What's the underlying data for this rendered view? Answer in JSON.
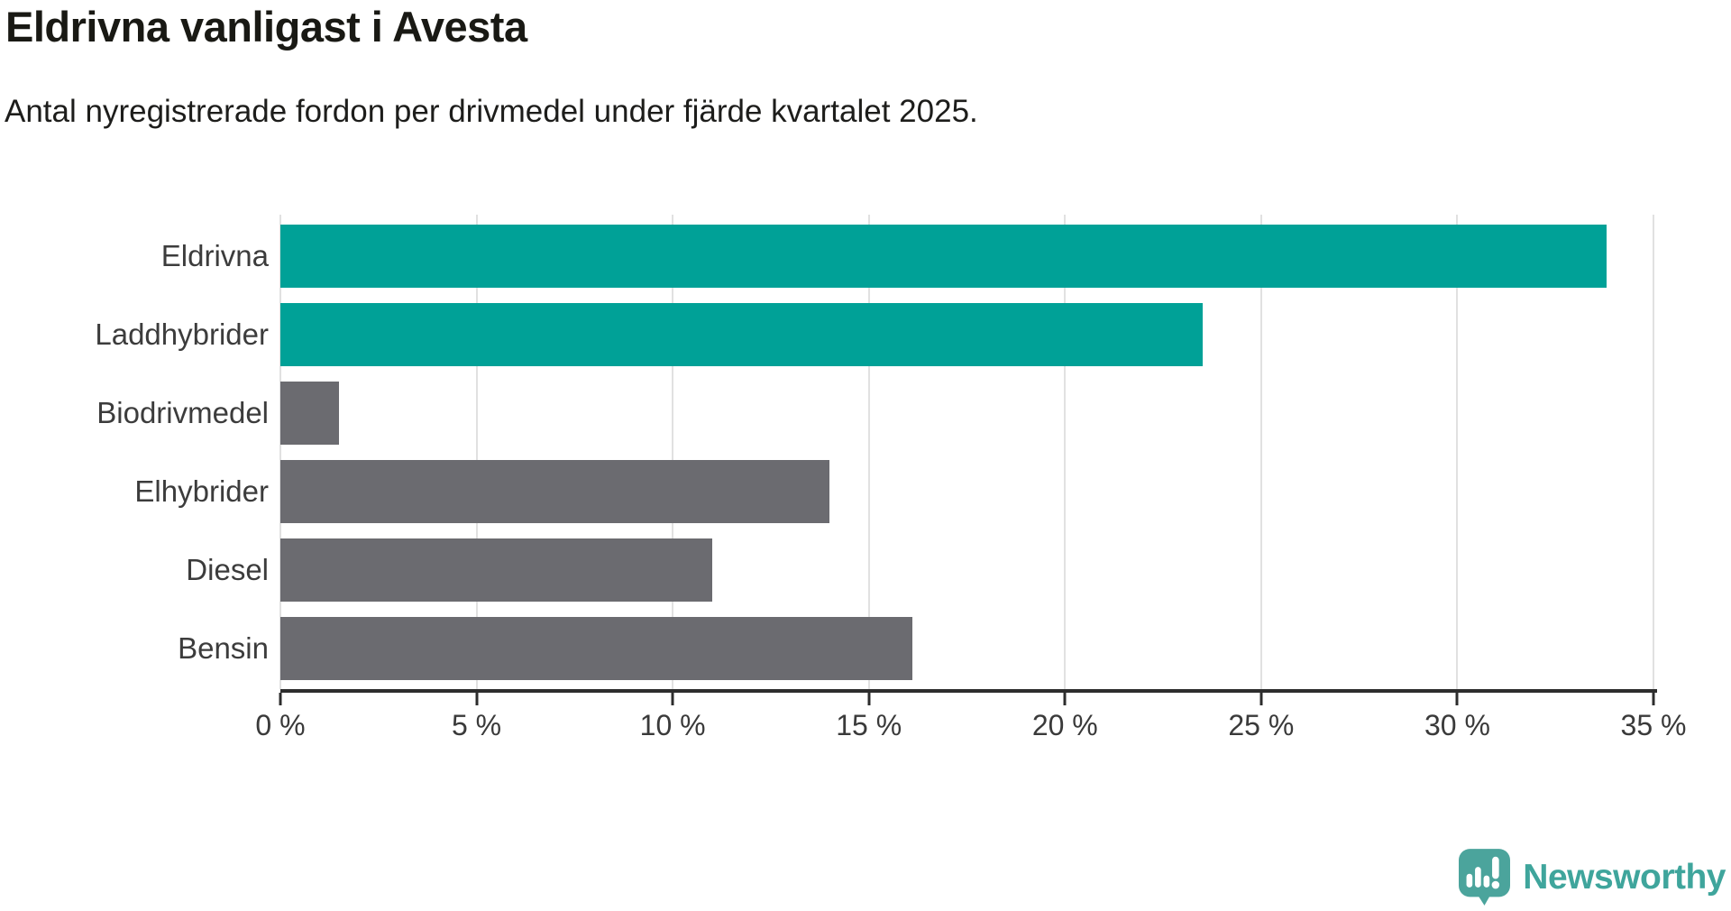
{
  "header": {
    "title": "Eldrivna vanligast i Avesta",
    "subtitle": "Antal nyregistrerade fordon per drivmedel under fjärde kvartalet 2025."
  },
  "chart_data": {
    "type": "bar",
    "orientation": "horizontal",
    "title": "Eldrivna vanligast i Avesta",
    "subtitle": "Antal nyregistrerade fordon per drivmedel under fjärde kvartalet 2025.",
    "categories": [
      "Eldrivna",
      "Laddhybrider",
      "Biodrivmedel",
      "Elhybrider",
      "Diesel",
      "Bensin"
    ],
    "values": [
      33.8,
      23.5,
      1.5,
      14.0,
      11.0,
      16.1
    ],
    "unit": "%",
    "xlim": [
      0,
      35
    ],
    "x_tick_step": 5,
    "x_tick_labels": [
      "0 %",
      "5 %",
      "10 %",
      "15 %",
      "20 %",
      "25 %",
      "30 %",
      "35 %"
    ],
    "grid": true,
    "legend": "none",
    "bar_colors": [
      "#00a197",
      "#00a197",
      "#6b6b70",
      "#6b6b70",
      "#6b6b70",
      "#6b6b70"
    ],
    "highlight_color": "#00a197",
    "default_color": "#6b6b70",
    "gridline_color": "#e1e1e1",
    "axis_color": "#2d2d2d"
  },
  "footer": {
    "brand": "Newsworthy",
    "brand_color": "#3fa59c",
    "logo_icon": "newsworthy-speech-bubble-chart-icon"
  }
}
